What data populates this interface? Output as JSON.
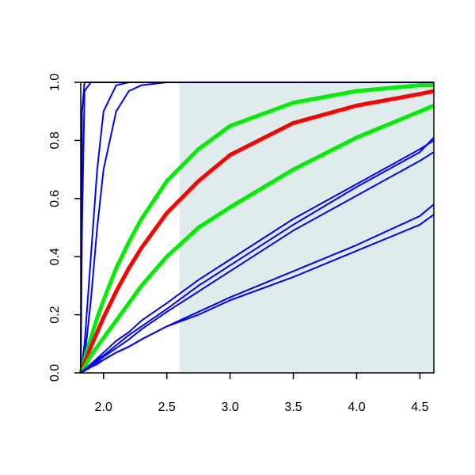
{
  "chart_data": {
    "type": "line",
    "x": [
      1.82,
      1.83,
      1.85,
      1.9,
      1.95,
      2.0,
      2.1,
      2.2,
      2.3,
      2.5,
      2.75,
      3.0,
      3.5,
      4.0,
      4.5,
      4.61
    ],
    "xlim": [
      1.82,
      4.61
    ],
    "ylim": [
      0,
      1
    ],
    "xticks": [
      {
        "value": 2,
        "label": "2.0"
      },
      2.5,
      {
        "value": 3,
        "label": "3.0"
      },
      3.5,
      {
        "value": 4,
        "label": "4.0"
      },
      4.5
    ],
    "yticks": [
      {
        "value": 0,
        "label": "0.0"
      },
      0.2,
      0.4,
      0.6,
      0.8,
      {
        "value": 1,
        "label": "1.0"
      }
    ],
    "shaded_xmin": 2.6,
    "shaded_color": "#dfeceb",
    "series": [
      {
        "color": "#0000cc",
        "values": [
          0,
          0.9,
          1,
          1,
          1,
          1,
          1,
          1,
          1,
          1,
          1,
          1,
          1,
          1,
          1,
          1
        ]
      },
      {
        "color": "#0000ff",
        "values": [
          0,
          0.5,
          0.97,
          1,
          1,
          1,
          1,
          1,
          1,
          1,
          1,
          1,
          1,
          1,
          1,
          1
        ]
      },
      {
        "color": "#0000ff",
        "values": [
          0,
          0.03,
          0.1,
          0.4,
          0.7,
          0.9,
          0.99,
          1,
          1,
          1,
          1,
          1,
          1,
          1,
          1,
          1
        ]
      },
      {
        "color": "#0000ff",
        "values": [
          0,
          0.01,
          0.05,
          0.25,
          0.5,
          0.7,
          0.9,
          0.97,
          0.99,
          1,
          1,
          1,
          1,
          1,
          1,
          1
        ]
      },
      {
        "color": "#00ee00",
        "values": [
          0,
          0.016,
          0.047,
          0.12,
          0.19,
          0.25,
          0.36,
          0.45,
          0.53,
          0.66,
          0.77,
          0.85,
          0.93,
          0.97,
          0.99,
          0.99
        ]
      },
      {
        "color": "#ff0000",
        "values": [
          0,
          0.012,
          0.034,
          0.09,
          0.14,
          0.19,
          0.28,
          0.36,
          0.43,
          0.55,
          0.66,
          0.75,
          0.86,
          0.92,
          0.96,
          0.97
        ]
      },
      {
        "color": "#00ee00",
        "values": [
          0,
          0.008,
          0.02,
          0.06,
          0.09,
          0.12,
          0.18,
          0.24,
          0.3,
          0.4,
          0.5,
          0.57,
          0.7,
          0.81,
          0.9,
          0.92
        ]
      },
      {
        "color": "#0000ff",
        "values": [
          0,
          0.004,
          0.012,
          0.03,
          0.05,
          0.07,
          0.11,
          0.14,
          0.18,
          0.24,
          0.32,
          0.39,
          0.53,
          0.65,
          0.77,
          0.8
        ]
      },
      {
        "color": "#0000ff",
        "values": [
          0,
          0.004,
          0.012,
          0.03,
          0.045,
          0.06,
          0.095,
          0.13,
          0.16,
          0.22,
          0.3,
          0.37,
          0.51,
          0.64,
          0.76,
          0.81
        ]
      },
      {
        "color": "#0000ff",
        "values": [
          0,
          0.003,
          0.01,
          0.025,
          0.04,
          0.055,
          0.085,
          0.115,
          0.15,
          0.21,
          0.28,
          0.35,
          0.49,
          0.61,
          0.73,
          0.76
        ]
      },
      {
        "color": "#0000ff",
        "values": [
          0,
          0.002,
          0.007,
          0.02,
          0.035,
          0.045,
          0.07,
          0.09,
          0.115,
          0.16,
          0.21,
          0.26,
          0.35,
          0.44,
          0.54,
          0.58
        ]
      },
      {
        "color": "#0000ff",
        "values": [
          0,
          0.002,
          0.007,
          0.02,
          0.03,
          0.045,
          0.07,
          0.09,
          0.115,
          0.16,
          0.2,
          0.25,
          0.33,
          0.42,
          0.51,
          0.545
        ]
      }
    ]
  }
}
